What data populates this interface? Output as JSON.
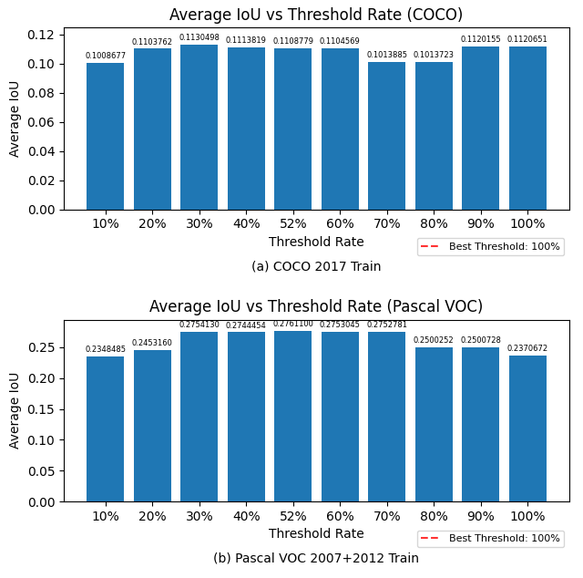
{
  "chart_data": [
    {
      "type": "bar",
      "title": "Average IoU vs Threshold Rate (COCO)",
      "x_label": "Threshold Rate",
      "y_label": "Average IoU",
      "categories": [
        "10%",
        "20%",
        "30%",
        "40%",
        "52%",
        "60%",
        "70%",
        "80%",
        "90%",
        "100%"
      ],
      "values": [
        0.1008677,
        0.1103762,
        0.1130498,
        0.1113819,
        0.1108779,
        0.1104569,
        0.1013885,
        0.1013723,
        0.1120155,
        0.1120651
      ],
      "value_labels": [
        "0.1008677",
        "0.1103762",
        "0.1130498",
        "0.1113819",
        "0.1108779",
        "0.1104569",
        "0.1013885",
        "0.1013723",
        "0.1120155",
        "0.1120651"
      ],
      "data_labels": true,
      "ylim": [
        0,
        0.125
      ],
      "yticks": [
        {
          "value": 0,
          "label": "0.00"
        },
        0.02,
        0.04,
        0.06,
        0.08,
        {
          "value": 0.1,
          "label": "0.10"
        },
        0.12
      ],
      "legend": "lower right",
      "legend_entry": {
        "name": "Best Threshold: 100%",
        "color": "#FF3333",
        "line_style": "dashed"
      },
      "caption": "(a) COCO 2017 Train"
    },
    {
      "type": "bar",
      "title": "Average IoU vs Threshold Rate (Pascal VOC)",
      "x_label": "Threshold Rate",
      "y_label": "Average IoU",
      "categories": [
        "10%",
        "20%",
        "30%",
        "40%",
        "52%",
        "60%",
        "70%",
        "80%",
        "90%",
        "100%"
      ],
      "values": [
        0.2348485,
        0.245316,
        0.275413,
        0.2744454,
        0.27611,
        0.2753045,
        0.2752781,
        0.2500252,
        0.2500728,
        0.2370672
      ],
      "value_labels": [
        "0.2348485",
        "0.2453160",
        "0.2754130",
        "0.2744454",
        "0.2761100",
        "0.2753045",
        "0.2752781",
        "0.2500252",
        "0.2500728",
        "0.2370672"
      ],
      "data_labels": true,
      "ylim": [
        0,
        0.295
      ],
      "yticks": [
        {
          "value": 0,
          "label": "0.00"
        },
        0.05,
        {
          "value": 0.1,
          "label": "0.10"
        },
        0.15,
        {
          "value": 0.2,
          "label": "0.20"
        },
        0.25
      ],
      "legend": "lower right",
      "legend_entry": {
        "name": "Best Threshold: 100%",
        "color": "#FF3333",
        "line_style": "dashed"
      },
      "caption": "(b) Pascal VOC 2007+2012 Train"
    }
  ]
}
